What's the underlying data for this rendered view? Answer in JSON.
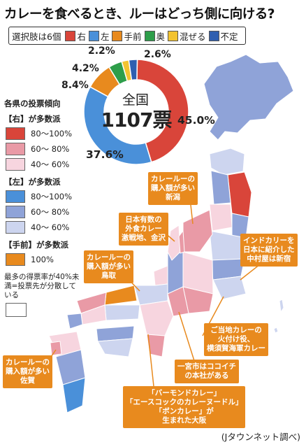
{
  "title": "カレーを食べるとき、ルーはどっち側に向ける?",
  "choices": {
    "label": "選択肢は6個",
    "items": [
      {
        "label": "右",
        "color": "#d9453a"
      },
      {
        "label": "左",
        "color": "#4a90d9"
      },
      {
        "label": "手前",
        "color": "#e88a1e"
      },
      {
        "label": "奥",
        "color": "#2e9e4a"
      },
      {
        "label": "混ぜる",
        "color": "#f3c330"
      },
      {
        "label": "不定",
        "color": "#2f5fb0"
      }
    ]
  },
  "chart_data": {
    "type": "pie",
    "center_label": "全国",
    "total_label": "1107票",
    "slices": [
      {
        "name": "右",
        "value": 45.0,
        "label": "45.0%",
        "color": "#d9453a"
      },
      {
        "name": "左",
        "value": 37.6,
        "label": "37.6%",
        "color": "#4a90d9"
      },
      {
        "name": "手前",
        "value": 8.4,
        "label": "8.4%",
        "color": "#e88a1e"
      },
      {
        "name": "奥",
        "value": 4.2,
        "label": "4.2%",
        "color": "#2e9e4a"
      },
      {
        "name": "混ぜる",
        "value": 2.2,
        "label": "2.2%",
        "color": "#f3c330"
      },
      {
        "name": "不定",
        "value": 2.6,
        "label": "2.6%",
        "color": "#2f5fb0"
      }
    ]
  },
  "legend": {
    "title": "各県の投票傾向",
    "groups": [
      {
        "heading": "【右】が多数派",
        "rows": [
          {
            "label": "80〜100%",
            "color": "#d9453a"
          },
          {
            "label": "60〜 80%",
            "color": "#e99aa6"
          },
          {
            "label": "40〜 60%",
            "color": "#f7d5df"
          }
        ]
      },
      {
        "heading": "【左】が多数派",
        "rows": [
          {
            "label": "80〜100%",
            "color": "#4a90d9"
          },
          {
            "label": "60〜 80%",
            "color": "#8fa3d8"
          },
          {
            "label": "40〜 60%",
            "color": "#cdd5ef"
          }
        ]
      },
      {
        "heading": "【手前】が多数派",
        "rows": [
          {
            "label": "100%",
            "color": "#e88a1e"
          }
        ]
      }
    ],
    "note": "最多の得票率が40%未満=投票先が分散している"
  },
  "callouts": {
    "niigata": "カレールーの\n購入額が多い\n新潟",
    "kanazawa": "日本有数の\n外食カレー\n激戦地、金沢",
    "tottori": "カレールーの\n購入額が多い\n鳥取",
    "shinjuku": "インドカリーを\n日本に紹介した\n中村屋は新宿",
    "yokosuka": "ご当地カレーの\n火付け役、\n横須賀海軍カレー",
    "ichinomiya": "一宮市はココイチ\nの本社がある",
    "saga": "カレールーの\n購入額が多い\n佐賀",
    "osaka": "「バーモンドカレー」\n「エースコックのカレーヌードル」\n「ボンカレー」が\n生まれた大阪"
  },
  "source": "(Jタウンネット調べ)"
}
